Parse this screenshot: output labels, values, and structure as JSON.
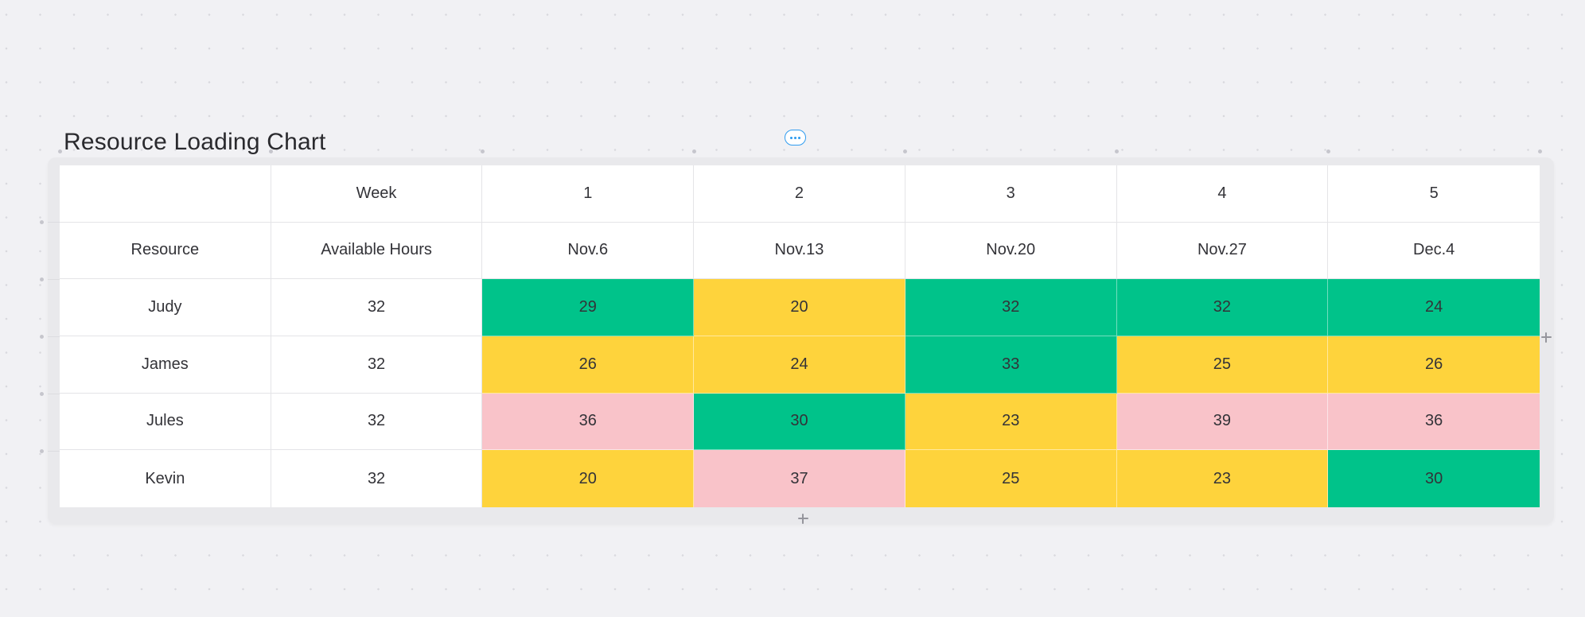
{
  "title": "Resource Loading Chart",
  "colors": {
    "background": "#f1f1f4",
    "dot": "#d9d9de",
    "guide_dot": "#c6c6cd",
    "card": "#e9e9ec",
    "table_bg": "#ffffff",
    "grid_line": "#e4e4e7",
    "text": "#333338",
    "title_text": "#2a2a2e",
    "accent_blue": "#2f9cf0",
    "green": "#00c38a",
    "yellow": "#fed33c",
    "pink": "#f9c3c9",
    "plus": "#95959c"
  },
  "icons": {
    "more_options": "ellipsis-icon",
    "add_column": "plus-icon",
    "add_row": "plus-icon"
  },
  "table": {
    "week_header": [
      "",
      "Week",
      "1",
      "2",
      "3",
      "4",
      "5"
    ],
    "date_header": [
      "Resource",
      "Available Hours",
      "Nov.6",
      "Nov.13",
      "Nov.20",
      "Nov.27",
      "Dec.4"
    ],
    "rows": [
      {
        "resource": "Judy",
        "available": "32",
        "cells": [
          {
            "value": "29",
            "color": "green"
          },
          {
            "value": "20",
            "color": "yellow"
          },
          {
            "value": "32",
            "color": "green"
          },
          {
            "value": "32",
            "color": "green"
          },
          {
            "value": "24",
            "color": "green"
          }
        ]
      },
      {
        "resource": "James",
        "available": "32",
        "cells": [
          {
            "value": "26",
            "color": "yellow"
          },
          {
            "value": "24",
            "color": "yellow"
          },
          {
            "value": "33",
            "color": "green"
          },
          {
            "value": "25",
            "color": "yellow"
          },
          {
            "value": "26",
            "color": "yellow"
          }
        ]
      },
      {
        "resource": "Jules",
        "available": "32",
        "cells": [
          {
            "value": "36",
            "color": "pink"
          },
          {
            "value": "30",
            "color": "green"
          },
          {
            "value": "23",
            "color": "yellow"
          },
          {
            "value": "39",
            "color": "pink"
          },
          {
            "value": "36",
            "color": "pink"
          }
        ]
      },
      {
        "resource": "Kevin",
        "available": "32",
        "cells": [
          {
            "value": "20",
            "color": "yellow"
          },
          {
            "value": "37",
            "color": "pink"
          },
          {
            "value": "25",
            "color": "yellow"
          },
          {
            "value": "23",
            "color": "yellow"
          },
          {
            "value": "30",
            "color": "green"
          }
        ]
      }
    ]
  },
  "chart_data": {
    "type": "table",
    "title": "Resource Loading Chart",
    "columns": [
      "Resource",
      "Available Hours",
      "Week 1 (Nov.6)",
      "Week 2 (Nov.13)",
      "Week 3 (Nov.20)",
      "Week 4 (Nov.27)",
      "Week 5 (Dec.4)"
    ],
    "rows": [
      {
        "resource": "Judy",
        "available_hours": 32,
        "weekly_hours": [
          29,
          20,
          32,
          32,
          24
        ],
        "cell_colors": [
          "green",
          "yellow",
          "green",
          "green",
          "green"
        ]
      },
      {
        "resource": "James",
        "available_hours": 32,
        "weekly_hours": [
          26,
          24,
          33,
          25,
          26
        ],
        "cell_colors": [
          "yellow",
          "yellow",
          "green",
          "yellow",
          "yellow"
        ]
      },
      {
        "resource": "Jules",
        "available_hours": 32,
        "weekly_hours": [
          36,
          30,
          23,
          39,
          36
        ],
        "cell_colors": [
          "pink",
          "green",
          "yellow",
          "pink",
          "pink"
        ]
      },
      {
        "resource": "Kevin",
        "available_hours": 32,
        "weekly_hours": [
          20,
          37,
          25,
          23,
          30
        ],
        "cell_colors": [
          "yellow",
          "pink",
          "yellow",
          "yellow",
          "green"
        ]
      }
    ]
  }
}
